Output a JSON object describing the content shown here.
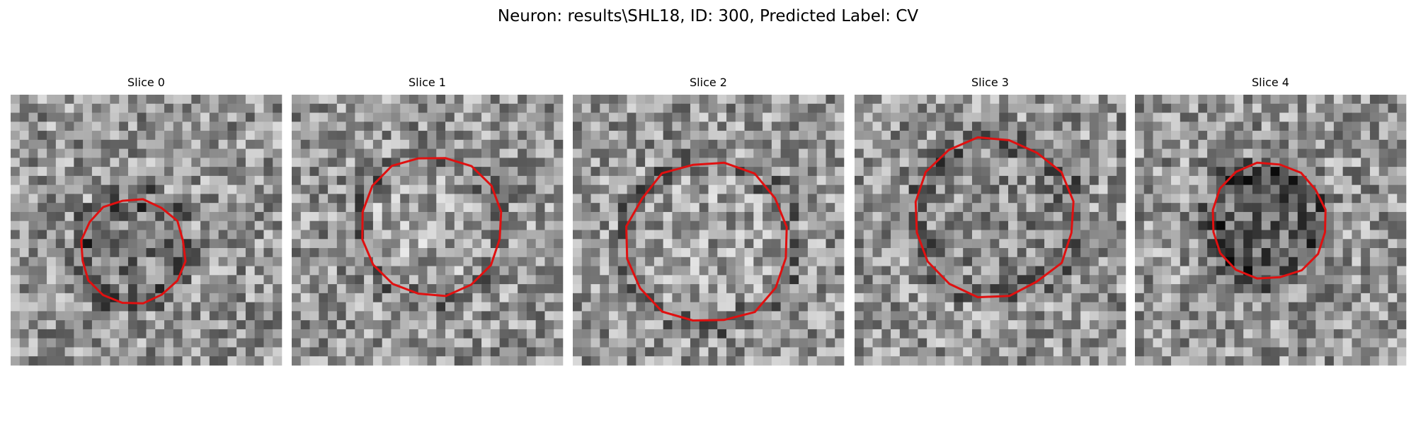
{
  "title": "Neuron: results\\SHL18, ID: 300, Predicted Label: CV",
  "panels": [
    {
      "title": "Slice 0"
    },
    {
      "title": "Slice 1"
    },
    {
      "title": "Slice 2"
    },
    {
      "title": "Slice 3"
    },
    {
      "title": "Slice 4"
    }
  ]
}
